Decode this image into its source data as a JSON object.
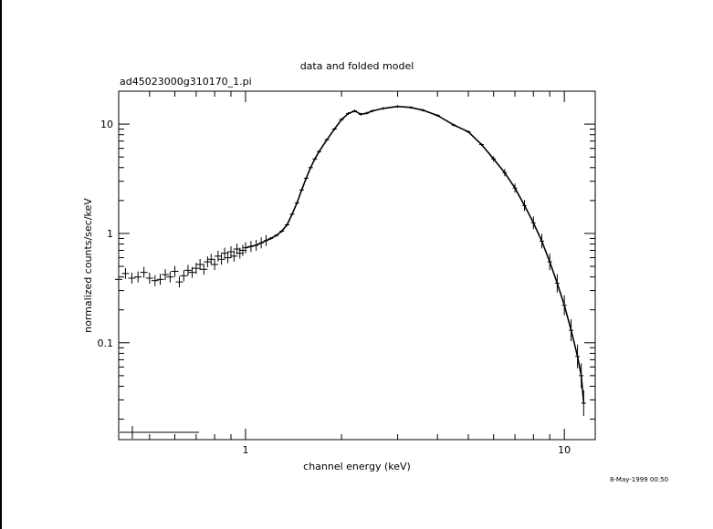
{
  "chart_data": {
    "type": "scatter",
    "title": "data and folded model",
    "subtitle": "ad45023000g310170_1.pi",
    "xlabel": "channel energy (keV)",
    "ylabel": "normalized counts/sec/keV",
    "x_scale": "log",
    "y_scale": "log",
    "xlim": [
      0.4,
      12.5
    ],
    "ylim": [
      0.013,
      20
    ],
    "x_ticks": [
      {
        "value": 1,
        "label": "1"
      },
      {
        "value": 10,
        "label": "10"
      }
    ],
    "y_ticks": [
      {
        "value": 0.1,
        "label": "0.1"
      },
      {
        "value": 1,
        "label": "1"
      },
      {
        "value": 10,
        "label": "10"
      }
    ],
    "date_stamp": "8-May-1999 00:50",
    "series": [
      {
        "points": [
          [
            0.4,
            0.38
          ],
          [
            0.42,
            0.43
          ],
          [
            0.44,
            0.39
          ],
          [
            0.46,
            0.4
          ],
          [
            0.48,
            0.44
          ],
          [
            0.5,
            0.39
          ],
          [
            0.52,
            0.37
          ],
          [
            0.54,
            0.38
          ],
          [
            0.56,
            0.42
          ],
          [
            0.58,
            0.4
          ],
          [
            0.6,
            0.45
          ],
          [
            0.62,
            0.36
          ],
          [
            0.64,
            0.41
          ],
          [
            0.66,
            0.46
          ],
          [
            0.68,
            0.44
          ],
          [
            0.7,
            0.48
          ],
          [
            0.72,
            0.52
          ],
          [
            0.74,
            0.47
          ],
          [
            0.76,
            0.55
          ],
          [
            0.78,
            0.58
          ],
          [
            0.8,
            0.52
          ],
          [
            0.82,
            0.62
          ],
          [
            0.84,
            0.58
          ],
          [
            0.86,
            0.66
          ],
          [
            0.88,
            0.6
          ],
          [
            0.9,
            0.68
          ],
          [
            0.92,
            0.62
          ],
          [
            0.94,
            0.72
          ],
          [
            0.96,
            0.66
          ],
          [
            0.98,
            0.7
          ],
          [
            1.0,
            0.74
          ],
          [
            1.04,
            0.76
          ],
          [
            1.08,
            0.78
          ],
          [
            1.12,
            0.82
          ],
          [
            1.16,
            0.86
          ],
          [
            1.2,
            0.9
          ],
          [
            1.25,
            0.96
          ],
          [
            1.3,
            1.05
          ],
          [
            1.35,
            1.2
          ],
          [
            1.4,
            1.5
          ],
          [
            1.45,
            1.9
          ],
          [
            1.5,
            2.5
          ],
          [
            1.55,
            3.2
          ],
          [
            1.6,
            4.0
          ],
          [
            1.65,
            4.8
          ],
          [
            1.7,
            5.6
          ],
          [
            1.8,
            7.2
          ],
          [
            1.9,
            9.0
          ],
          [
            2.0,
            11.0
          ],
          [
            2.1,
            12.5
          ],
          [
            2.2,
            13.2
          ],
          [
            2.3,
            12.3
          ],
          [
            2.4,
            12.6
          ],
          [
            2.5,
            13.2
          ],
          [
            2.7,
            13.9
          ],
          [
            3.0,
            14.5
          ],
          [
            3.3,
            14.2
          ],
          [
            3.6,
            13.4
          ],
          [
            4.0,
            12.0
          ],
          [
            4.5,
            9.8
          ],
          [
            5.0,
            8.5
          ],
          [
            5.5,
            6.5
          ],
          [
            6.0,
            4.8
          ],
          [
            6.5,
            3.6
          ],
          [
            7.0,
            2.6
          ],
          [
            7.5,
            1.8
          ],
          [
            8.0,
            1.25
          ],
          [
            8.5,
            0.85
          ],
          [
            9.0,
            0.55
          ],
          [
            9.5,
            0.35
          ],
          [
            10.0,
            0.22
          ],
          [
            10.5,
            0.13
          ],
          [
            11.0,
            0.075
          ],
          [
            11.3,
            0.05
          ],
          [
            11.5,
            0.028
          ]
        ]
      }
    ]
  }
}
